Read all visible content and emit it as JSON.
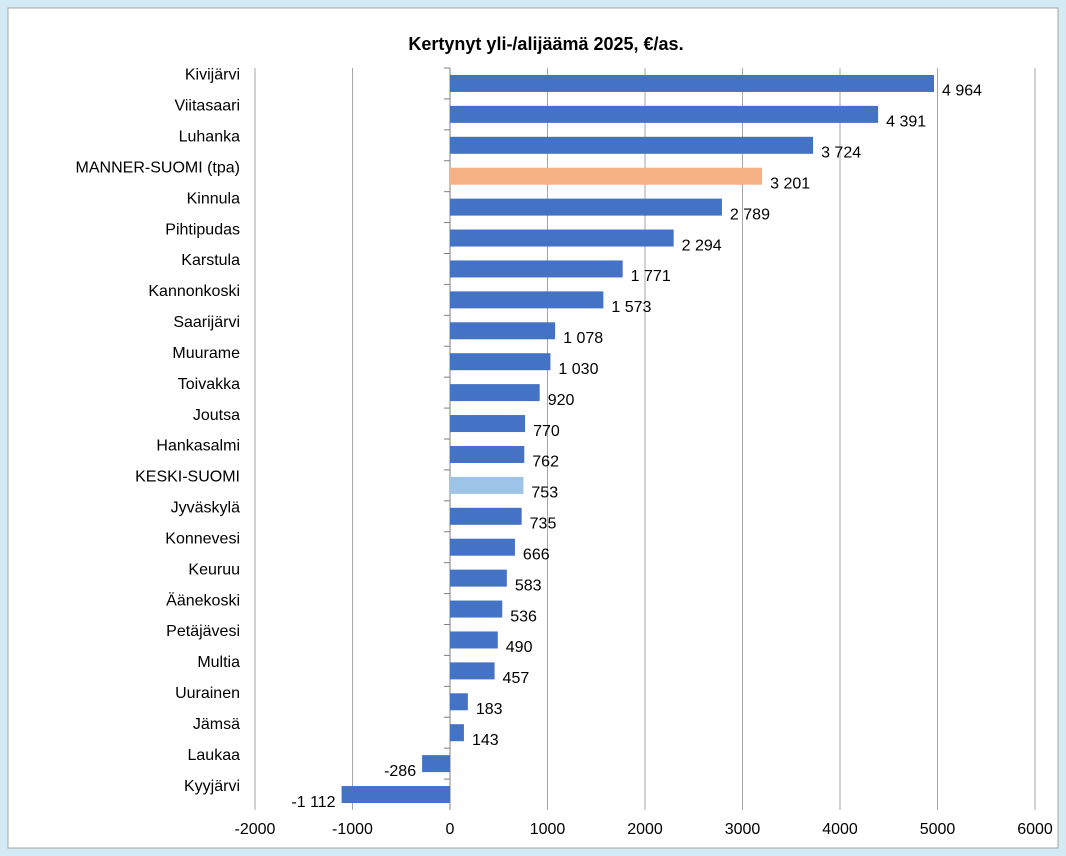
{
  "chart_data": {
    "type": "bar",
    "orientation": "horizontal",
    "title": "Kertynyt yli-/alijäämä 2025, €/as.",
    "categories": [
      "Kivijärvi",
      "Viitasaari",
      "Luhanka",
      "MANNER-SUOMI (tpa)",
      "Kinnula",
      "Pihtipudas",
      "Karstula",
      "Kannonkoski",
      "Saarijärvi",
      "Muurame",
      "Toivakka",
      "Joutsa",
      "Hankasalmi",
      "KESKI-SUOMI",
      "Jyväskylä",
      "Konnevesi",
      "Keuruu",
      "Äänekoski",
      "Petäjävesi",
      "Multia",
      "Uurainen",
      "Jämsä",
      "Laukaa",
      "Kyyjärvi"
    ],
    "values": [
      4964,
      4391,
      3724,
      3201,
      2789,
      2294,
      1771,
      1573,
      1078,
      1030,
      920,
      770,
      762,
      753,
      735,
      666,
      583,
      536,
      490,
      457,
      183,
      143,
      -286,
      -1112
    ],
    "value_labels": [
      "4 964",
      "4 391",
      "3 724",
      "3 201",
      "2 789",
      "2 294",
      "1 771",
      "1 573",
      "1 078",
      "1 030",
      "920",
      "770",
      "762",
      "753",
      "735",
      "666",
      "583",
      "536",
      "490",
      "457",
      "183",
      "143",
      "-286",
      "-1 112"
    ],
    "colors": [
      "#4472c4",
      "#4472c4",
      "#4472c4",
      "#f4b183",
      "#4472c4",
      "#4472c4",
      "#4472c4",
      "#4472c4",
      "#4472c4",
      "#4472c4",
      "#4472c4",
      "#4472c4",
      "#4472c4",
      "#9dc3e6",
      "#4472c4",
      "#4472c4",
      "#4472c4",
      "#4472c4",
      "#4472c4",
      "#4472c4",
      "#4472c4",
      "#4472c4",
      "#4472c4",
      "#4472c4"
    ],
    "xlim": [
      -2000,
      6000
    ],
    "xticks": [
      -2000,
      -1000,
      0,
      1000,
      2000,
      3000,
      4000,
      5000,
      6000
    ],
    "grid": true
  }
}
